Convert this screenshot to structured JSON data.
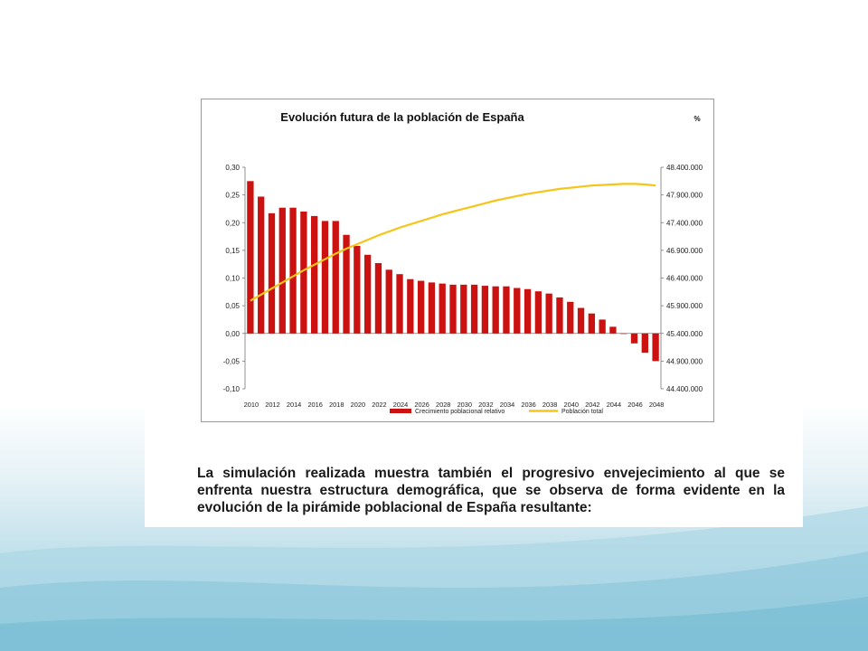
{
  "slide": {
    "caption": "La simulación realizada muestra también el progresivo envejecimiento al que se enfrenta nuestra estructura demográfica, que se observa de forma evidente en la evolución de la pirámide poblacional de España resultante:"
  },
  "chart_data": {
    "type": "bar",
    "title": "Evolución futura de la población de España",
    "unit_label": "%",
    "legend_placement": "bottom",
    "grid": false,
    "x": [
      2010,
      2011,
      2012,
      2013,
      2014,
      2015,
      2016,
      2017,
      2018,
      2019,
      2020,
      2021,
      2022,
      2023,
      2024,
      2025,
      2026,
      2027,
      2028,
      2029,
      2030,
      2031,
      2032,
      2033,
      2034,
      2035,
      2036,
      2037,
      2038,
      2039,
      2040,
      2041,
      2042,
      2043,
      2044,
      2045,
      2046,
      2047,
      2048
    ],
    "x_tick_labels": [
      "2010",
      "2012",
      "2014",
      "2016",
      "2018",
      "2020",
      "2022",
      "2024",
      "2026",
      "2028",
      "2030",
      "2032",
      "2034",
      "2036",
      "2038",
      "2040",
      "2042",
      "2044",
      "2046",
      "2048"
    ],
    "y_left_ticks": [
      "0,30",
      "0,25",
      "0,20",
      "0,15",
      "0,10",
      "0,05",
      "0,00",
      "-0,05",
      "-0,10"
    ],
    "y_left_lim": [
      -0.1,
      0.3
    ],
    "y_right_ticks": [
      "48.400.000",
      "47.900.000",
      "47.400.000",
      "46.900.000",
      "46.400.000",
      "45.900.000",
      "45.400.000",
      "44.900.000",
      "44.400.000"
    ],
    "y_right_lim": [
      44400000,
      48400000
    ],
    "series": [
      {
        "name": "Crecimiento poblacional relativo",
        "kind": "bar",
        "axis": "left",
        "color": "#cc1111",
        "values": [
          0.275,
          0.247,
          0.217,
          0.227,
          0.227,
          0.22,
          0.212,
          0.203,
          0.203,
          0.178,
          0.158,
          0.142,
          0.127,
          0.115,
          0.107,
          0.098,
          0.095,
          0.092,
          0.09,
          0.088,
          0.088,
          0.088,
          0.086,
          0.085,
          0.085,
          0.082,
          0.08,
          0.076,
          0.072,
          0.065,
          0.057,
          0.046,
          0.036,
          0.025,
          0.012,
          0.0,
          -0.018,
          -0.035,
          -0.05
        ]
      },
      {
        "name": "Población total",
        "kind": "line",
        "axis": "right",
        "color": "#f5c518",
        "values": [
          45990000,
          46100000,
          46210000,
          46320000,
          46430000,
          46540000,
          46640000,
          46740000,
          46840000,
          46930000,
          47010000,
          47090000,
          47170000,
          47240000,
          47310000,
          47370000,
          47430000,
          47490000,
          47550000,
          47600000,
          47650000,
          47700000,
          47750000,
          47800000,
          47840000,
          47880000,
          47920000,
          47950000,
          47980000,
          48010000,
          48030000,
          48050000,
          48070000,
          48080000,
          48090000,
          48100000,
          48100000,
          48090000,
          48070000
        ]
      }
    ]
  }
}
